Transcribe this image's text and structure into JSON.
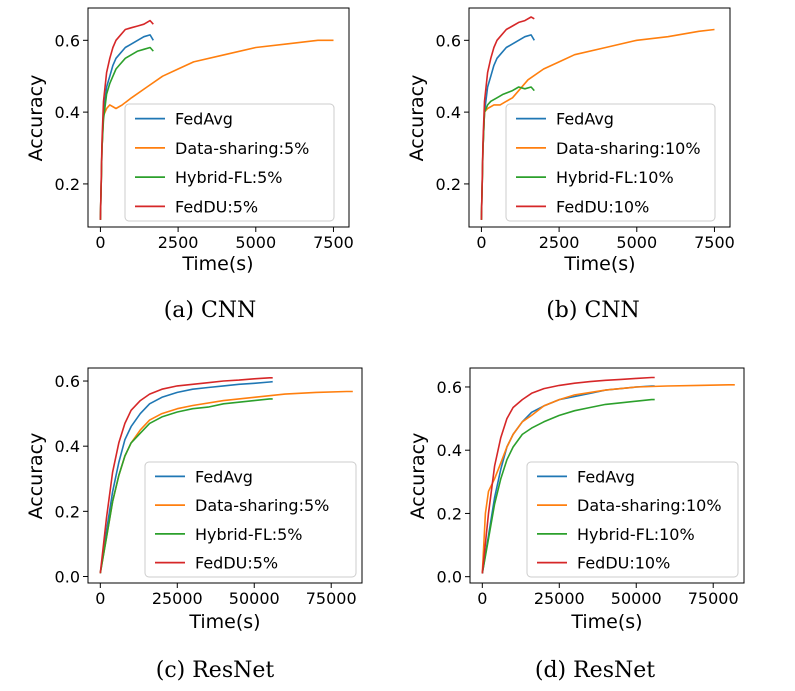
{
  "figure": {
    "panels": [
      {
        "id": "a",
        "caption": "(a) CNN",
        "chart_data": {
          "type": "line",
          "xlabel": "Time(s)",
          "ylabel": "Accuracy",
          "xlim": [
            -400,
            8000
          ],
          "ylim": [
            0.08,
            0.69
          ],
          "xticks": [
            0,
            2500,
            5000,
            7500
          ],
          "xtick_labels": [
            "0",
            "2500",
            "5000",
            "7500"
          ],
          "yticks": [
            0.2,
            0.4,
            0.6
          ],
          "ytick_labels": [
            "0.2",
            "0.4",
            "0.6"
          ],
          "legend_position": "lower-center",
          "series": [
            {
              "name": "FedAvg",
              "color": "#1f77b4",
              "x": [
                0,
                50,
                100,
                200,
                300,
                400,
                500,
                600,
                800,
                1000,
                1200,
                1400,
                1600,
                1700
              ],
              "y": [
                0.1,
                0.3,
                0.4,
                0.47,
                0.5,
                0.53,
                0.55,
                0.56,
                0.58,
                0.59,
                0.6,
                0.61,
                0.615,
                0.6
              ]
            },
            {
              "name": "Data-sharing:5%",
              "color": "#ff7f0e",
              "x": [
                0,
                50,
                100,
                200,
                300,
                500,
                700,
                1000,
                1500,
                2000,
                2500,
                3000,
                4000,
                5000,
                6000,
                7000,
                7500
              ],
              "y": [
                0.1,
                0.3,
                0.39,
                0.41,
                0.42,
                0.41,
                0.42,
                0.44,
                0.47,
                0.5,
                0.52,
                0.54,
                0.56,
                0.58,
                0.59,
                0.6,
                0.6
              ]
            },
            {
              "name": "Hybrid-FL:5%",
              "color": "#2ca02c",
              "x": [
                0,
                50,
                100,
                200,
                300,
                400,
                500,
                600,
                800,
                1000,
                1200,
                1400,
                1600,
                1700
              ],
              "y": [
                0.1,
                0.3,
                0.38,
                0.45,
                0.48,
                0.5,
                0.52,
                0.53,
                0.55,
                0.56,
                0.57,
                0.575,
                0.58,
                0.57
              ]
            },
            {
              "name": "FedDU:5%",
              "color": "#d62728",
              "x": [
                0,
                50,
                100,
                200,
                300,
                400,
                500,
                600,
                800,
                1000,
                1200,
                1400,
                1600,
                1700
              ],
              "y": [
                0.1,
                0.32,
                0.43,
                0.51,
                0.55,
                0.58,
                0.6,
                0.61,
                0.63,
                0.635,
                0.64,
                0.645,
                0.655,
                0.645
              ]
            }
          ]
        }
      },
      {
        "id": "b",
        "caption": "(b) CNN",
        "chart_data": {
          "type": "line",
          "xlabel": "Time(s)",
          "ylabel": "Accuracy",
          "xlim": [
            -400,
            8000
          ],
          "ylim": [
            0.08,
            0.69
          ],
          "xticks": [
            0,
            2500,
            5000,
            7500
          ],
          "xtick_labels": [
            "0",
            "2500",
            "5000",
            "7500"
          ],
          "yticks": [
            0.2,
            0.4,
            0.6
          ],
          "ytick_labels": [
            "0.2",
            "0.4",
            "0.6"
          ],
          "legend_position": "lower-center",
          "series": [
            {
              "name": "FedAvg",
              "color": "#1f77b4",
              "x": [
                0,
                50,
                100,
                200,
                300,
                400,
                500,
                600,
                800,
                1000,
                1200,
                1400,
                1600,
                1700
              ],
              "y": [
                0.1,
                0.3,
                0.4,
                0.47,
                0.5,
                0.53,
                0.55,
                0.56,
                0.58,
                0.59,
                0.6,
                0.61,
                0.615,
                0.6
              ]
            },
            {
              "name": "Data-sharing:10%",
              "color": "#ff7f0e",
              "x": [
                0,
                50,
                100,
                200,
                400,
                600,
                800,
                1000,
                1500,
                2000,
                2500,
                3000,
                4000,
                5000,
                6000,
                7000,
                7500
              ],
              "y": [
                0.1,
                0.3,
                0.4,
                0.41,
                0.42,
                0.42,
                0.43,
                0.44,
                0.49,
                0.52,
                0.54,
                0.56,
                0.58,
                0.6,
                0.61,
                0.625,
                0.63
              ]
            },
            {
              "name": "Hybrid-FL:10%",
              "color": "#2ca02c",
              "x": [
                0,
                50,
                100,
                200,
                300,
                500,
                700,
                1000,
                1200,
                1400,
                1600,
                1700
              ],
              "y": [
                0.1,
                0.3,
                0.4,
                0.42,
                0.43,
                0.44,
                0.45,
                0.46,
                0.47,
                0.465,
                0.47,
                0.46
              ]
            },
            {
              "name": "FedDU:10%",
              "color": "#d62728",
              "x": [
                0,
                50,
                100,
                200,
                300,
                400,
                500,
                600,
                800,
                1000,
                1200,
                1400,
                1600,
                1700
              ],
              "y": [
                0.1,
                0.32,
                0.43,
                0.51,
                0.55,
                0.58,
                0.6,
                0.61,
                0.63,
                0.64,
                0.65,
                0.655,
                0.665,
                0.66
              ]
            }
          ]
        }
      },
      {
        "id": "c",
        "caption": "(c) ResNet",
        "chart_data": {
          "type": "line",
          "xlabel": "Time(s)",
          "ylabel": "Accuracy",
          "xlim": [
            -4000,
            85000
          ],
          "ylim": [
            -0.02,
            0.64
          ],
          "xticks": [
            0,
            25000,
            50000,
            75000
          ],
          "xtick_labels": [
            "0",
            "25000",
            "50000",
            "75000"
          ],
          "yticks": [
            0.0,
            0.2,
            0.4,
            0.6
          ],
          "ytick_labels": [
            "0.0",
            "0.2",
            "0.4",
            "0.6"
          ],
          "legend_position": "lower-right",
          "series": [
            {
              "name": "FedAvg",
              "color": "#1f77b4",
              "x": [
                0,
                2000,
                4000,
                6000,
                8000,
                10000,
                13000,
                16000,
                20000,
                25000,
                30000,
                35000,
                40000,
                45000,
                50000,
                55000,
                56000
              ],
              "y": [
                0.01,
                0.14,
                0.26,
                0.35,
                0.42,
                0.46,
                0.5,
                0.53,
                0.55,
                0.565,
                0.575,
                0.58,
                0.585,
                0.59,
                0.593,
                0.597,
                0.598
              ]
            },
            {
              "name": "Data-sharing:5%",
              "color": "#ff7f0e",
              "x": [
                0,
                2000,
                4000,
                6000,
                8000,
                10000,
                13000,
                16000,
                20000,
                25000,
                30000,
                40000,
                50000,
                60000,
                70000,
                80000,
                82000
              ],
              "y": [
                0.01,
                0.12,
                0.23,
                0.31,
                0.37,
                0.41,
                0.45,
                0.48,
                0.5,
                0.515,
                0.525,
                0.54,
                0.55,
                0.56,
                0.565,
                0.568,
                0.568
              ]
            },
            {
              "name": "Hybrid-FL:5%",
              "color": "#2ca02c",
              "x": [
                0,
                2000,
                4000,
                6000,
                8000,
                10000,
                13000,
                16000,
                20000,
                25000,
                30000,
                35000,
                40000,
                45000,
                50000,
                55000,
                56000
              ],
              "y": [
                0.01,
                0.12,
                0.23,
                0.31,
                0.37,
                0.41,
                0.44,
                0.47,
                0.49,
                0.505,
                0.515,
                0.52,
                0.53,
                0.535,
                0.54,
                0.545,
                0.545
              ]
            },
            {
              "name": "FedDU:5%",
              "color": "#d62728",
              "x": [
                0,
                2000,
                4000,
                6000,
                8000,
                10000,
                13000,
                16000,
                20000,
                25000,
                30000,
                35000,
                40000,
                45000,
                50000,
                55000,
                56000
              ],
              "y": [
                0.01,
                0.18,
                0.32,
                0.41,
                0.47,
                0.51,
                0.54,
                0.56,
                0.575,
                0.585,
                0.59,
                0.595,
                0.6,
                0.603,
                0.607,
                0.61,
                0.61
              ]
            }
          ]
        }
      },
      {
        "id": "d",
        "caption": "(d) ResNet",
        "chart_data": {
          "type": "line",
          "xlabel": "Time(s)",
          "ylabel": "Accuracy",
          "xlim": [
            -4000,
            85000
          ],
          "ylim": [
            -0.02,
            0.66
          ],
          "xticks": [
            0,
            25000,
            50000,
            75000
          ],
          "xtick_labels": [
            "0",
            "25000",
            "50000",
            "75000"
          ],
          "yticks": [
            0.0,
            0.2,
            0.4,
            0.6
          ],
          "ytick_labels": [
            "0.0",
            "0.2",
            "0.4",
            "0.6"
          ],
          "legend_position": "lower-right",
          "series": [
            {
              "name": "FedAvg",
              "color": "#1f77b4",
              "x": [
                0,
                2000,
                4000,
                6000,
                8000,
                10000,
                13000,
                16000,
                20000,
                25000,
                30000,
                35000,
                40000,
                45000,
                50000,
                55000,
                56000
              ],
              "y": [
                0.01,
                0.13,
                0.25,
                0.34,
                0.41,
                0.45,
                0.49,
                0.52,
                0.54,
                0.56,
                0.57,
                0.58,
                0.59,
                0.595,
                0.6,
                0.603,
                0.603
              ]
            },
            {
              "name": "Data-sharing:10%",
              "color": "#ff7f0e",
              "x": [
                0,
                1000,
                2000,
                4000,
                6000,
                8000,
                10000,
                13000,
                16000,
                20000,
                25000,
                30000,
                40000,
                50000,
                60000,
                70000,
                80000,
                82000
              ],
              "y": [
                0.01,
                0.2,
                0.27,
                0.31,
                0.36,
                0.41,
                0.45,
                0.49,
                0.51,
                0.54,
                0.56,
                0.575,
                0.59,
                0.6,
                0.603,
                0.605,
                0.607,
                0.607
              ]
            },
            {
              "name": "Hybrid-FL:10%",
              "color": "#2ca02c",
              "x": [
                0,
                2000,
                4000,
                6000,
                8000,
                10000,
                13000,
                16000,
                20000,
                25000,
                30000,
                35000,
                40000,
                45000,
                50000,
                55000,
                56000
              ],
              "y": [
                0.01,
                0.12,
                0.23,
                0.31,
                0.37,
                0.41,
                0.45,
                0.47,
                0.49,
                0.51,
                0.525,
                0.535,
                0.545,
                0.55,
                0.555,
                0.56,
                0.56
              ]
            },
            {
              "name": "FedDU:10%",
              "color": "#d62728",
              "x": [
                0,
                2000,
                4000,
                6000,
                8000,
                10000,
                13000,
                16000,
                20000,
                25000,
                30000,
                35000,
                40000,
                45000,
                50000,
                55000,
                56000
              ],
              "y": [
                0.01,
                0.2,
                0.35,
                0.44,
                0.5,
                0.535,
                0.56,
                0.58,
                0.595,
                0.605,
                0.612,
                0.617,
                0.621,
                0.624,
                0.627,
                0.63,
                0.63
              ]
            }
          ]
        }
      }
    ]
  }
}
